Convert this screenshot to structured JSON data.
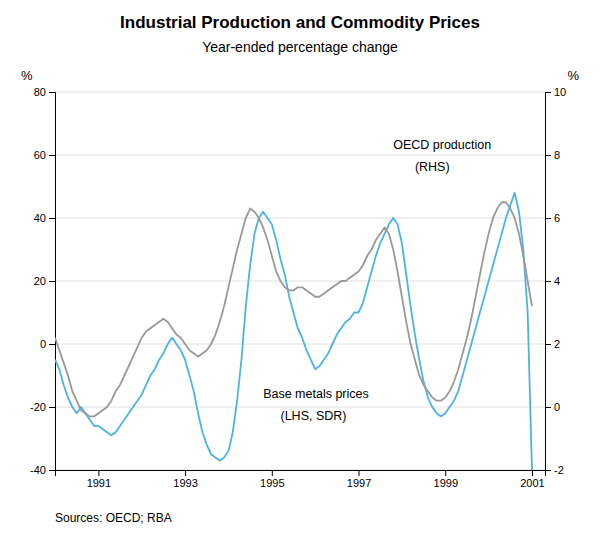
{
  "chart_data": {
    "type": "line",
    "title": "Industrial Production and Commodity Prices",
    "subtitle": "Year-ended percentage change",
    "ylabel": "%",
    "y2label": "%",
    "source": "Sources: OECD; RBA",
    "grid": true,
    "xlim": [
      1990.0,
      2001.3
    ],
    "xticks": [
      1991,
      1993,
      1995,
      1997,
      1999,
      2001
    ],
    "ylim": [
      -40,
      80
    ],
    "yticks": [
      -40,
      -20,
      0,
      20,
      40,
      60,
      80
    ],
    "y2lim": [
      -2,
      10
    ],
    "y2ticks": [
      -2,
      0,
      2,
      4,
      6,
      8,
      10
    ],
    "x": [
      1990.0,
      1990.1,
      1990.2,
      1990.3,
      1990.4,
      1990.5,
      1990.6,
      1990.7,
      1990.8,
      1990.9,
      1991.0,
      1991.1,
      1991.2,
      1991.3,
      1991.4,
      1991.5,
      1991.6,
      1991.7,
      1991.8,
      1991.9,
      1992.0,
      1992.1,
      1992.2,
      1992.3,
      1992.4,
      1992.5,
      1992.6,
      1992.7,
      1992.8,
      1992.9,
      1993.0,
      1993.1,
      1993.2,
      1993.3,
      1993.4,
      1993.5,
      1993.6,
      1993.7,
      1993.8,
      1993.9,
      1994.0,
      1994.1,
      1994.2,
      1994.3,
      1994.4,
      1994.5,
      1994.6,
      1994.7,
      1994.8,
      1994.9,
      1995.0,
      1995.1,
      1995.2,
      1995.3,
      1995.4,
      1995.5,
      1995.6,
      1995.7,
      1995.8,
      1995.9,
      1996.0,
      1996.1,
      1996.2,
      1996.3,
      1996.4,
      1996.5,
      1996.6,
      1996.7,
      1996.8,
      1996.9,
      1997.0,
      1997.1,
      1997.2,
      1997.3,
      1997.4,
      1997.5,
      1997.6,
      1997.7,
      1997.8,
      1997.9,
      1998.0,
      1998.1,
      1998.2,
      1998.3,
      1998.4,
      1998.5,
      1998.6,
      1998.7,
      1998.8,
      1998.9,
      1999.0,
      1999.1,
      1999.2,
      1999.3,
      1999.4,
      1999.5,
      1999.6,
      1999.7,
      1999.8,
      1999.9,
      2000.0,
      2000.1,
      2000.2,
      2000.3,
      2000.4,
      2000.5,
      2000.6,
      2000.7,
      2000.8,
      2000.9,
      2001.0
    ],
    "series": [
      {
        "color": "#4db3e6",
        "values": [
          -5,
          -8,
          -13,
          -17,
          -20,
          -22,
          -20,
          -22,
          -24,
          -26,
          -26,
          -27,
          -28,
          -29,
          -28,
          -26,
          -24,
          -22,
          -20,
          -18,
          -16,
          -13,
          -10,
          -8,
          -5,
          -3,
          0,
          2,
          0,
          -2,
          -5,
          -10,
          -15,
          -22,
          -28,
          -32,
          -35,
          -36,
          -37,
          -36,
          -34,
          -28,
          -18,
          -5,
          12,
          25,
          35,
          40,
          42,
          40,
          38,
          33,
          27,
          22,
          15,
          10,
          5,
          2,
          -2,
          -5,
          -8,
          -7,
          -5,
          -3,
          0,
          3,
          5,
          7,
          8,
          10,
          10,
          13,
          18,
          23,
          28,
          32,
          35,
          38,
          40,
          38,
          32,
          22,
          12,
          3,
          -5,
          -12,
          -17,
          -20,
          -22,
          -23,
          -22,
          -20,
          -18,
          -15,
          -10,
          -5,
          0,
          5,
          10,
          15,
          20,
          25,
          30,
          35,
          40,
          44,
          48,
          42,
          30,
          10,
          -40
        ]
      },
      {
        "color": "#999999",
        "axis": "y2",
        "values": [
          2.2,
          1.8,
          1.4,
          1.0,
          0.5,
          0.2,
          -0.1,
          -0.2,
          -0.3,
          -0.3,
          -0.2,
          -0.1,
          0.0,
          0.2,
          0.5,
          0.7,
          1.0,
          1.3,
          1.6,
          1.9,
          2.2,
          2.4,
          2.5,
          2.6,
          2.7,
          2.8,
          2.7,
          2.5,
          2.3,
          2.2,
          2.0,
          1.8,
          1.7,
          1.6,
          1.7,
          1.8,
          2.0,
          2.3,
          2.7,
          3.2,
          3.8,
          4.4,
          5.0,
          5.5,
          6.0,
          6.3,
          6.2,
          6.0,
          5.7,
          5.3,
          4.8,
          4.3,
          4.0,
          3.8,
          3.7,
          3.7,
          3.8,
          3.8,
          3.7,
          3.6,
          3.5,
          3.5,
          3.6,
          3.7,
          3.8,
          3.9,
          4.0,
          4.0,
          4.1,
          4.2,
          4.3,
          4.5,
          4.8,
          5.0,
          5.3,
          5.5,
          5.7,
          5.5,
          5.0,
          4.3,
          3.5,
          2.7,
          2.0,
          1.5,
          1.0,
          0.7,
          0.5,
          0.3,
          0.2,
          0.2,
          0.3,
          0.5,
          0.8,
          1.2,
          1.7,
          2.2,
          2.8,
          3.5,
          4.2,
          4.9,
          5.5,
          6.0,
          6.3,
          6.5,
          6.5,
          6.3,
          6.0,
          5.5,
          4.8,
          4.0,
          3.2
        ]
      }
    ],
    "annotations": [
      {
        "text": "OECD production",
        "x": 1997.8,
        "y": 62
      },
      {
        "text": "(RHS)",
        "x": 1998.3,
        "y": 55
      },
      {
        "text": "Base metals prices",
        "x": 1994.8,
        "y": -17
      },
      {
        "text": "(LHS, SDR)",
        "x": 1995.2,
        "y": -24
      }
    ]
  }
}
